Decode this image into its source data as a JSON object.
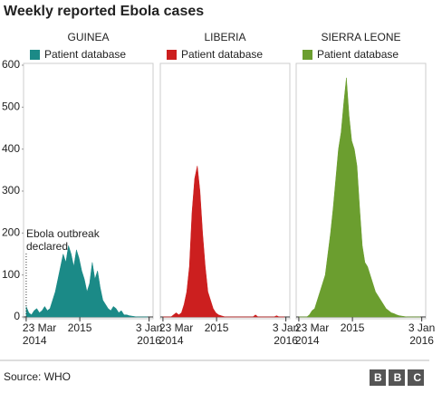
{
  "title": "Weekly reported Ebola cases",
  "source": "Source: WHO",
  "logo": "BBC",
  "chart_data": [
    {
      "type": "area",
      "title": "GUINEA",
      "color": "#1b8a87",
      "x": [
        "2014-03-23",
        "2014-04-06",
        "2014-04-20",
        "2014-05-04",
        "2014-05-18",
        "2014-06-01",
        "2014-06-15",
        "2014-06-29",
        "2014-07-13",
        "2014-07-27",
        "2014-08-10",
        "2014-08-24",
        "2014-09-07",
        "2014-09-21",
        "2014-10-05",
        "2014-10-19",
        "2014-11-02",
        "2014-11-16",
        "2014-11-30",
        "2014-12-14",
        "2014-12-28",
        "2015-01-11",
        "2015-01-25",
        "2015-02-08",
        "2015-02-22",
        "2015-03-08",
        "2015-03-22",
        "2015-04-05",
        "2015-04-19",
        "2015-05-03",
        "2015-05-17",
        "2015-05-31",
        "2015-06-14",
        "2015-06-28",
        "2015-07-12",
        "2015-07-26",
        "2015-08-09",
        "2015-08-23",
        "2015-09-06",
        "2015-09-20",
        "2015-10-04",
        "2015-10-18",
        "2015-11-01",
        "2015-11-15",
        "2015-11-29",
        "2015-12-13",
        "2015-12-27"
      ],
      "series": [
        {
          "name": "Patient database",
          "color": "#1b8a87",
          "values": [
            25,
            10,
            5,
            15,
            20,
            10,
            15,
            25,
            15,
            20,
            40,
            60,
            90,
            120,
            150,
            130,
            170,
            150,
            120,
            160,
            140,
            110,
            90,
            60,
            80,
            130,
            90,
            110,
            70,
            40,
            30,
            20,
            15,
            25,
            20,
            10,
            15,
            5,
            5,
            3,
            2,
            1,
            0,
            0,
            0,
            0,
            0
          ]
        }
      ],
      "xlim": [
        "2014-03-09",
        "2016-01-24"
      ],
      "xticks": [
        {
          "value": "2014-03-23",
          "label": "23 Mar 2014"
        },
        {
          "value": "2015-01-01",
          "label": "2015"
        },
        {
          "value": "2016-01-03",
          "label": "3 Jan 2016"
        }
      ],
      "ylim": [
        0,
        600
      ],
      "yticks": [
        0,
        100,
        200,
        300,
        400,
        500,
        600
      ],
      "annotation": {
        "text": "Ebola outbreak declared",
        "x": "2014-03-23"
      }
    },
    {
      "type": "area",
      "title": "LIBERIA",
      "color": "#cc1f1f",
      "x": [
        "2014-03-23",
        "2014-04-06",
        "2014-04-20",
        "2014-05-04",
        "2014-05-18",
        "2014-06-01",
        "2014-06-15",
        "2014-06-29",
        "2014-07-13",
        "2014-07-27",
        "2014-08-10",
        "2014-08-24",
        "2014-09-07",
        "2014-09-21",
        "2014-10-05",
        "2014-10-19",
        "2014-11-02",
        "2014-11-16",
        "2014-11-30",
        "2014-12-14",
        "2014-12-28",
        "2015-01-11",
        "2015-01-25",
        "2015-02-08",
        "2015-02-22",
        "2015-03-08",
        "2015-03-22",
        "2015-04-05",
        "2015-04-19",
        "2015-05-03",
        "2015-05-17",
        "2015-05-31",
        "2015-06-14",
        "2015-06-28",
        "2015-07-12",
        "2015-07-26",
        "2015-08-09",
        "2015-08-23",
        "2015-09-06",
        "2015-09-20",
        "2015-10-04",
        "2015-10-18",
        "2015-11-01",
        "2015-11-15",
        "2015-11-29",
        "2015-12-13",
        "2015-12-27"
      ],
      "series": [
        {
          "name": "Patient database",
          "color": "#cc1f1f",
          "values": [
            0,
            0,
            0,
            0,
            5,
            10,
            5,
            10,
            30,
            60,
            120,
            250,
            330,
            360,
            300,
            200,
            120,
            60,
            40,
            20,
            10,
            5,
            3,
            1,
            0,
            0,
            0,
            0,
            0,
            0,
            0,
            0,
            0,
            0,
            0,
            5,
            0,
            0,
            0,
            0,
            0,
            0,
            0,
            3,
            0,
            0,
            0
          ]
        }
      ],
      "xlim": [
        "2014-03-09",
        "2016-01-24"
      ],
      "xticks": [
        {
          "value": "2014-03-23",
          "label": "23 Mar 2014"
        },
        {
          "value": "2015-01-01",
          "label": "2015"
        },
        {
          "value": "2016-01-03",
          "label": "3 Jan 2016"
        }
      ],
      "ylim": [
        0,
        600
      ]
    },
    {
      "type": "area",
      "title": "SIERRA LEONE",
      "color": "#6b9e2f",
      "x": [
        "2014-03-23",
        "2014-04-06",
        "2014-04-20",
        "2014-05-04",
        "2014-05-18",
        "2014-06-01",
        "2014-06-15",
        "2014-06-29",
        "2014-07-13",
        "2014-07-27",
        "2014-08-10",
        "2014-08-24",
        "2014-09-07",
        "2014-09-21",
        "2014-10-05",
        "2014-10-19",
        "2014-11-02",
        "2014-11-16",
        "2014-11-30",
        "2014-12-14",
        "2014-12-28",
        "2015-01-11",
        "2015-01-25",
        "2015-02-08",
        "2015-02-22",
        "2015-03-08",
        "2015-03-22",
        "2015-04-05",
        "2015-04-19",
        "2015-05-03",
        "2015-05-17",
        "2015-05-31",
        "2015-06-14",
        "2015-06-28",
        "2015-07-12",
        "2015-07-26",
        "2015-08-09",
        "2015-08-23",
        "2015-09-06",
        "2015-09-20",
        "2015-10-04",
        "2015-10-18",
        "2015-11-01",
        "2015-11-15",
        "2015-11-29",
        "2015-12-13",
        "2015-12-27"
      ],
      "series": [
        {
          "name": "Patient database",
          "color": "#6b9e2f",
          "values": [
            0,
            0,
            0,
            0,
            5,
            15,
            20,
            40,
            60,
            80,
            100,
            150,
            200,
            260,
            330,
            400,
            440,
            510,
            570,
            480,
            420,
            400,
            360,
            260,
            170,
            130,
            120,
            100,
            80,
            60,
            50,
            40,
            30,
            20,
            15,
            10,
            8,
            5,
            3,
            2,
            1,
            0,
            0,
            0,
            0,
            0,
            0
          ]
        }
      ],
      "xlim": [
        "2014-03-09",
        "2016-01-24"
      ],
      "xticks": [
        {
          "value": "2014-03-23",
          "label": "23 Mar 2014"
        },
        {
          "value": "2015-01-01",
          "label": "2015"
        },
        {
          "value": "2016-01-03",
          "label": "3 Jan 2016"
        }
      ],
      "ylim": [
        0,
        600
      ]
    }
  ]
}
